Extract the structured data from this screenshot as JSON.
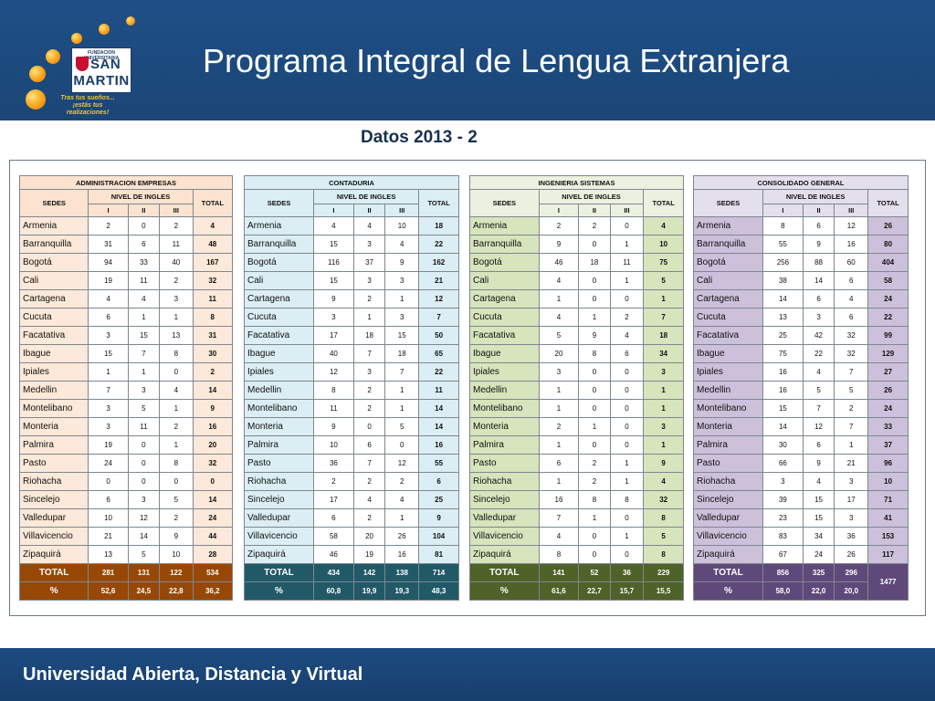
{
  "header": {
    "title": "Programa Integral de Lengua Extranjera",
    "logo": {
      "fundacion": "FUNDACION UNIVERSITARIA",
      "line1": "SAN",
      "line2": "MARTIN",
      "slogan1": "Tras tus sueños...",
      "slogan2": "¡estás tus realizaciones!"
    }
  },
  "subtitle": "Datos 2013 - 2",
  "footer": {
    "text": "Universidad Abierta, Distancia y Virtual"
  },
  "labels": {
    "sedes": "SEDES",
    "nivel": "NIVEL DE INGLES",
    "total": "TOTAL",
    "levels": [
      "I",
      "II",
      "III"
    ],
    "total_row": "TOTAL",
    "pct_row": "%"
  },
  "colors": {
    "admin": {
      "head": "#fbe3cf",
      "row": "#fde9d9",
      "foot": "#974806"
    },
    "contaduria": {
      "head": "#daeef3",
      "row": "#dbeef4",
      "foot": "#215967"
    },
    "ingenieria": {
      "head": "#ebf1de",
      "row": "#d7e4bc",
      "foot": "#4f6228"
    },
    "consolidado": {
      "head": "#e4dfec",
      "row": "#ccc0da",
      "foot": "#5f497a"
    }
  },
  "tables": [
    {
      "key": "admin",
      "title": "ADMINISTRACION EMPRESAS",
      "rows": [
        {
          "sede": "Armenia",
          "v": [
            "2",
            "0",
            "2"
          ],
          "total": "4"
        },
        {
          "sede": "Barranquilla",
          "v": [
            "31",
            "6",
            "11"
          ],
          "total": "48"
        },
        {
          "sede": "Bogotá",
          "v": [
            "94",
            "33",
            "40"
          ],
          "total": "167"
        },
        {
          "sede": "Cali",
          "v": [
            "19",
            "11",
            "2"
          ],
          "total": "32"
        },
        {
          "sede": "Cartagena",
          "v": [
            "4",
            "4",
            "3"
          ],
          "total": "11"
        },
        {
          "sede": "Cucuta",
          "v": [
            "6",
            "1",
            "1"
          ],
          "total": "8"
        },
        {
          "sede": "Facatativa",
          "v": [
            "3",
            "15",
            "13"
          ],
          "total": "31"
        },
        {
          "sede": "Ibague",
          "v": [
            "15",
            "7",
            "8"
          ],
          "total": "30"
        },
        {
          "sede": "Ipiales",
          "v": [
            "1",
            "1",
            "0"
          ],
          "total": "2"
        },
        {
          "sede": "Medellin",
          "v": [
            "7",
            "3",
            "4"
          ],
          "total": "14"
        },
        {
          "sede": "Montelibano",
          "v": [
            "3",
            "5",
            "1"
          ],
          "total": "9"
        },
        {
          "sede": "Monteria",
          "v": [
            "3",
            "11",
            "2"
          ],
          "total": "16"
        },
        {
          "sede": "Palmira",
          "v": [
            "19",
            "0",
            "1"
          ],
          "total": "20"
        },
        {
          "sede": "Pasto",
          "v": [
            "24",
            "0",
            "8"
          ],
          "total": "32"
        },
        {
          "sede": "Riohacha",
          "v": [
            "0",
            "0",
            "0"
          ],
          "total": "0"
        },
        {
          "sede": "Sincelejo",
          "v": [
            "6",
            "3",
            "5"
          ],
          "total": "14"
        },
        {
          "sede": "Valledupar",
          "v": [
            "10",
            "12",
            "2"
          ],
          "total": "24"
        },
        {
          "sede": "Villavicencio",
          "v": [
            "21",
            "14",
            "9"
          ],
          "total": "44"
        },
        {
          "sede": "Zipaquirá",
          "v": [
            "13",
            "5",
            "10"
          ],
          "total": "28"
        }
      ],
      "total": {
        "v": [
          "281",
          "131",
          "122"
        ],
        "total": "534"
      },
      "pct": {
        "v": [
          "52,6",
          "24,5",
          "22,8"
        ],
        "total": "36,2"
      }
    },
    {
      "key": "contaduria",
      "title": "CONTADURIA",
      "rows": [
        {
          "sede": "Armenia",
          "v": [
            "4",
            "4",
            "10"
          ],
          "total": "18"
        },
        {
          "sede": "Barranquilla",
          "v": [
            "15",
            "3",
            "4"
          ],
          "total": "22"
        },
        {
          "sede": "Bogotá",
          "v": [
            "116",
            "37",
            "9"
          ],
          "total": "162"
        },
        {
          "sede": "Cali",
          "v": [
            "15",
            "3",
            "3"
          ],
          "total": "21"
        },
        {
          "sede": "Cartagena",
          "v": [
            "9",
            "2",
            "1"
          ],
          "total": "12"
        },
        {
          "sede": "Cucuta",
          "v": [
            "3",
            "1",
            "3"
          ],
          "total": "7"
        },
        {
          "sede": "Facatativa",
          "v": [
            "17",
            "18",
            "15"
          ],
          "total": "50"
        },
        {
          "sede": "Ibague",
          "v": [
            "40",
            "7",
            "18"
          ],
          "total": "65"
        },
        {
          "sede": "Ipiales",
          "v": [
            "12",
            "3",
            "7"
          ],
          "total": "22"
        },
        {
          "sede": "Medellin",
          "v": [
            "8",
            "2",
            "1"
          ],
          "total": "11"
        },
        {
          "sede": "Montelibano",
          "v": [
            "11",
            "2",
            "1"
          ],
          "total": "14"
        },
        {
          "sede": "Monteria",
          "v": [
            "9",
            "0",
            "5"
          ],
          "total": "14"
        },
        {
          "sede": "Palmira",
          "v": [
            "10",
            "6",
            "0"
          ],
          "total": "16"
        },
        {
          "sede": "Pasto",
          "v": [
            "36",
            "7",
            "12"
          ],
          "total": "55"
        },
        {
          "sede": "Riohacha",
          "v": [
            "2",
            "2",
            "2"
          ],
          "total": "6"
        },
        {
          "sede": "Sincelejo",
          "v": [
            "17",
            "4",
            "4"
          ],
          "total": "25"
        },
        {
          "sede": "Valledupar",
          "v": [
            "6",
            "2",
            "1"
          ],
          "total": "9"
        },
        {
          "sede": "Villavicencio",
          "v": [
            "58",
            "20",
            "26"
          ],
          "total": "104"
        },
        {
          "sede": "Zipaquirá",
          "v": [
            "46",
            "19",
            "16"
          ],
          "total": "81"
        }
      ],
      "total": {
        "v": [
          "434",
          "142",
          "138"
        ],
        "total": "714"
      },
      "pct": {
        "v": [
          "60,8",
          "19,9",
          "19,3"
        ],
        "total": "48,3"
      }
    },
    {
      "key": "ingenieria",
      "title": "INGENIERIA SISTEMAS",
      "rows": [
        {
          "sede": "Armenia",
          "v": [
            "2",
            "2",
            "0"
          ],
          "total": "4"
        },
        {
          "sede": "Barranquilla",
          "v": [
            "9",
            "0",
            "1"
          ],
          "total": "10"
        },
        {
          "sede": "Bogotá",
          "v": [
            "46",
            "18",
            "11"
          ],
          "total": "75"
        },
        {
          "sede": "Cali",
          "v": [
            "4",
            "0",
            "1"
          ],
          "total": "5"
        },
        {
          "sede": "Cartagena",
          "v": [
            "1",
            "0",
            "0"
          ],
          "total": "1"
        },
        {
          "sede": "Cucuta",
          "v": [
            "4",
            "1",
            "2"
          ],
          "total": "7"
        },
        {
          "sede": "Facatativa",
          "v": [
            "5",
            "9",
            "4"
          ],
          "total": "18"
        },
        {
          "sede": "Ibague",
          "v": [
            "20",
            "8",
            "6"
          ],
          "total": "34"
        },
        {
          "sede": "Ipiales",
          "v": [
            "3",
            "0",
            "0"
          ],
          "total": "3"
        },
        {
          "sede": "Medellin",
          "v": [
            "1",
            "0",
            "0"
          ],
          "total": "1"
        },
        {
          "sede": "Montelibano",
          "v": [
            "1",
            "0",
            "0"
          ],
          "total": "1"
        },
        {
          "sede": "Monteria",
          "v": [
            "2",
            "1",
            "0"
          ],
          "total": "3"
        },
        {
          "sede": "Palmira",
          "v": [
            "1",
            "0",
            "0"
          ],
          "total": "1"
        },
        {
          "sede": "Pasto",
          "v": [
            "6",
            "2",
            "1"
          ],
          "total": "9"
        },
        {
          "sede": "Riohacha",
          "v": [
            "1",
            "2",
            "1"
          ],
          "total": "4"
        },
        {
          "sede": "Sincelejo",
          "v": [
            "16",
            "8",
            "8"
          ],
          "total": "32"
        },
        {
          "sede": "Valledupar",
          "v": [
            "7",
            "1",
            "0"
          ],
          "total": "8"
        },
        {
          "sede": "Villavicencio",
          "v": [
            "4",
            "0",
            "1"
          ],
          "total": "5"
        },
        {
          "sede": "Zipaquirá",
          "v": [
            "8",
            "0",
            "0"
          ],
          "total": "8"
        }
      ],
      "total": {
        "v": [
          "141",
          "52",
          "36"
        ],
        "total": "229"
      },
      "pct": {
        "v": [
          "61,6",
          "22,7",
          "15,7"
        ],
        "total": "15,5"
      }
    },
    {
      "key": "consolidado",
      "title": "CONSOLIDADO GENERAL",
      "rows": [
        {
          "sede": "Armenia",
          "v": [
            "8",
            "6",
            "12"
          ],
          "total": "26"
        },
        {
          "sede": "Barranquilla",
          "v": [
            "55",
            "9",
            "16"
          ],
          "total": "80"
        },
        {
          "sede": "Bogotá",
          "v": [
            "256",
            "88",
            "60"
          ],
          "total": "404"
        },
        {
          "sede": "Cali",
          "v": [
            "38",
            "14",
            "6"
          ],
          "total": "58"
        },
        {
          "sede": "Cartagena",
          "v": [
            "14",
            "6",
            "4"
          ],
          "total": "24"
        },
        {
          "sede": "Cucuta",
          "v": [
            "13",
            "3",
            "6"
          ],
          "total": "22"
        },
        {
          "sede": "Facatativa",
          "v": [
            "25",
            "42",
            "32"
          ],
          "total": "99"
        },
        {
          "sede": "Ibague",
          "v": [
            "75",
            "22",
            "32"
          ],
          "total": "129"
        },
        {
          "sede": "Ipiales",
          "v": [
            "16",
            "4",
            "7"
          ],
          "total": "27"
        },
        {
          "sede": "Medellin",
          "v": [
            "16",
            "5",
            "5"
          ],
          "total": "26"
        },
        {
          "sede": "Montelibano",
          "v": [
            "15",
            "7",
            "2"
          ],
          "total": "24"
        },
        {
          "sede": "Monteria",
          "v": [
            "14",
            "12",
            "7"
          ],
          "total": "33"
        },
        {
          "sede": "Palmira",
          "v": [
            "30",
            "6",
            "1"
          ],
          "total": "37"
        },
        {
          "sede": "Pasto",
          "v": [
            "66",
            "9",
            "21"
          ],
          "total": "96"
        },
        {
          "sede": "Riohacha",
          "v": [
            "3",
            "4",
            "3"
          ],
          "total": "10"
        },
        {
          "sede": "Sincelejo",
          "v": [
            "39",
            "15",
            "17"
          ],
          "total": "71"
        },
        {
          "sede": "Valledupar",
          "v": [
            "23",
            "15",
            "3"
          ],
          "total": "41"
        },
        {
          "sede": "Villavicencio",
          "v": [
            "83",
            "34",
            "36"
          ],
          "total": "153"
        },
        {
          "sede": "Zipaquirá",
          "v": [
            "67",
            "24",
            "26"
          ],
          "total": "117"
        }
      ],
      "total": {
        "v": [
          "856",
          "325",
          "296"
        ],
        "total": "1477"
      },
      "pct": {
        "v": [
          "58,0",
          "22,0",
          "20,0"
        ],
        "total": ""
      }
    }
  ]
}
